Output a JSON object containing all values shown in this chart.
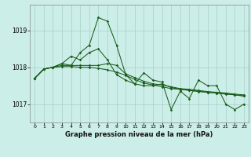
{
  "title": "Graphe pression niveau de la mer (hPa)",
  "background_color": "#cceee8",
  "grid_color": "#aad4cc",
  "line_color": "#1a5c1a",
  "xlim": [
    -0.5,
    23.5
  ],
  "ylim": [
    1016.5,
    1019.7
  ],
  "yticks": [
    1017,
    1018,
    1019
  ],
  "xticks": [
    0,
    1,
    2,
    3,
    4,
    5,
    6,
    7,
    8,
    9,
    10,
    11,
    12,
    13,
    14,
    15,
    16,
    17,
    18,
    19,
    20,
    21,
    22,
    23
  ],
  "series1": [
    1017.7,
    1017.95,
    1018.0,
    1018.1,
    1018.05,
    1018.4,
    1018.6,
    1019.35,
    1019.25,
    1018.6,
    1017.8,
    1017.55,
    1017.85,
    1017.65,
    1017.6,
    1016.85,
    1017.35,
    1017.15,
    1017.65,
    1017.5,
    1017.5,
    1017.0,
    1016.85,
    1017.0
  ],
  "series2": [
    1017.7,
    1017.95,
    1018.0,
    1018.1,
    1018.3,
    1018.2,
    1018.4,
    1018.5,
    1018.2,
    1017.8,
    1017.65,
    1017.55,
    1017.5,
    1017.5,
    1017.55,
    1017.45,
    1017.4,
    1017.38,
    1017.35,
    1017.32,
    1017.3,
    1017.28,
    1017.25,
    1017.22
  ],
  "series3": [
    1017.7,
    1017.95,
    1018.0,
    1018.05,
    1018.05,
    1018.05,
    1018.05,
    1018.05,
    1018.1,
    1018.05,
    1017.82,
    1017.72,
    1017.62,
    1017.55,
    1017.52,
    1017.47,
    1017.42,
    1017.4,
    1017.37,
    1017.34,
    1017.32,
    1017.3,
    1017.27,
    1017.25
  ],
  "series4": [
    1017.7,
    1017.95,
    1018.0,
    1018.02,
    1018.02,
    1018.0,
    1018.0,
    1017.97,
    1017.93,
    1017.87,
    1017.78,
    1017.67,
    1017.57,
    1017.52,
    1017.47,
    1017.42,
    1017.4,
    1017.37,
    1017.34,
    1017.32,
    1017.3,
    1017.27,
    1017.25,
    1017.22
  ]
}
